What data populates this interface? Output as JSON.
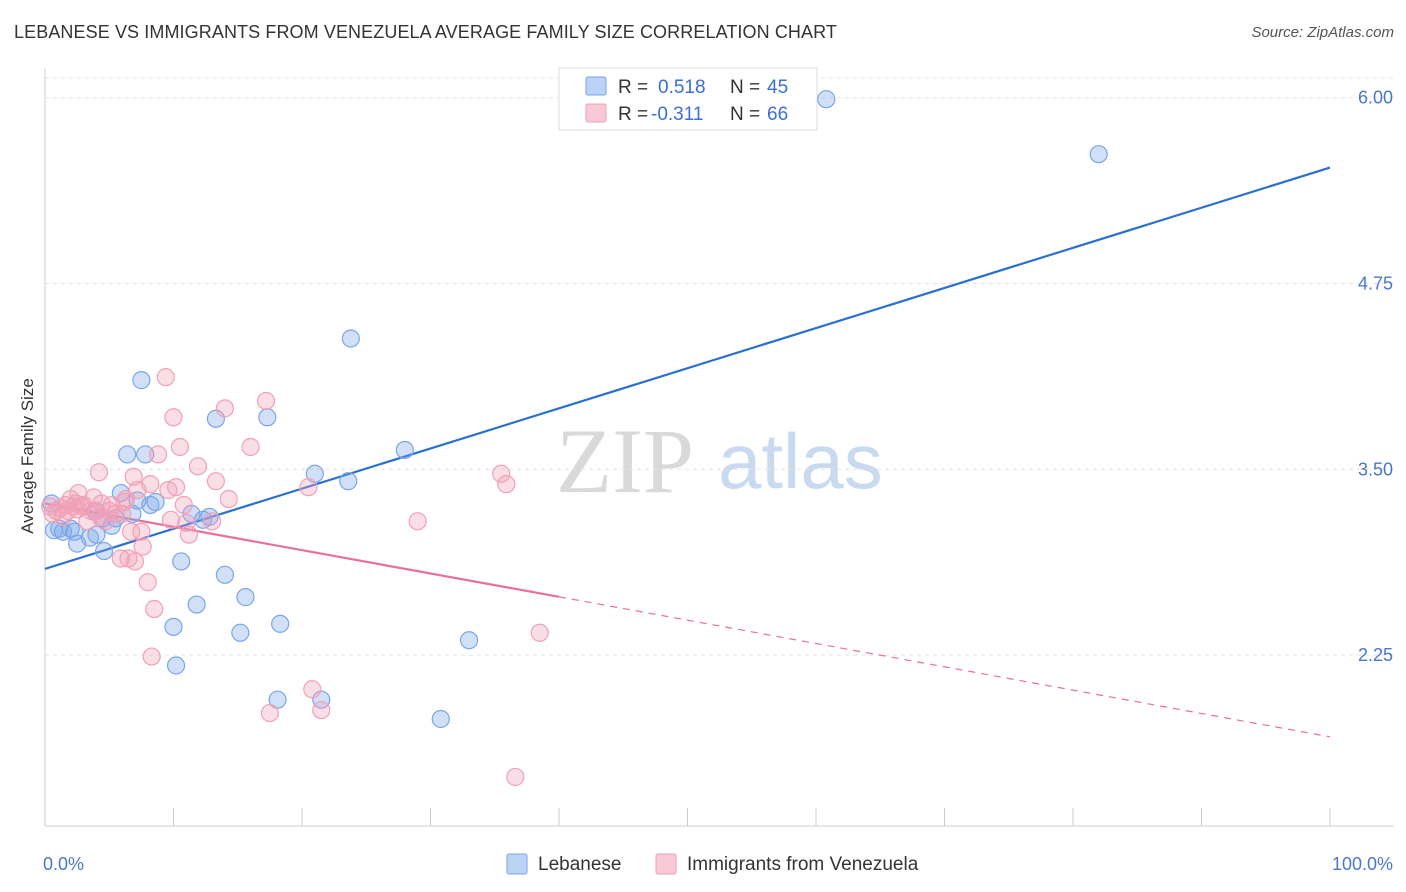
{
  "title": "LEBANESE VS IMMIGRANTS FROM VENEZUELA AVERAGE FAMILY SIZE CORRELATION CHART",
  "source": "Source: ZipAtlas.com",
  "watermark": {
    "zip": "ZIP",
    "atlas": "atlas"
  },
  "chart_data": {
    "type": "scatter",
    "title": "LEBANESE VS IMMIGRANTS FROM VENEZUELA AVERAGE FAMILY SIZE CORRELATION CHART",
    "xlabel": "",
    "ylabel": "Average Family Size",
    "xlim": [
      0,
      100
    ],
    "ylim": [
      1.1,
      6.2
    ],
    "x_tick_labels": [
      "0.0%",
      "100.0%"
    ],
    "y_ticks": [
      2.25,
      3.5,
      4.75,
      6.0
    ],
    "y_tick_labels": [
      "2.25",
      "3.50",
      "4.75",
      "6.00"
    ],
    "grid": true,
    "legend": {
      "placement": "top-center",
      "r_label": "R =",
      "n_label": "N =",
      "entries": [
        {
          "r": "0.518",
          "n": "45"
        },
        {
          "r": "-0.311",
          "n": "66"
        }
      ]
    },
    "series": [
      {
        "name": "Lebanese",
        "color": "#7aa6e8",
        "line_color": "#2b6fd1",
        "trend": {
          "x0": 0,
          "y0": 2.83,
          "x1": 100,
          "y1": 5.53,
          "dashed_from": null
        },
        "points": [
          [
            0.5,
            3.27
          ],
          [
            0.7,
            3.09
          ],
          [
            1.1,
            3.1
          ],
          [
            1.4,
            3.08
          ],
          [
            2.0,
            3.1
          ],
          [
            2.3,
            3.08
          ],
          [
            2.5,
            3.0
          ],
          [
            3.5,
            3.04
          ],
          [
            3.9,
            3.22
          ],
          [
            4.0,
            3.06
          ],
          [
            4.5,
            3.17
          ],
          [
            4.6,
            2.95
          ],
          [
            5.2,
            3.12
          ],
          [
            5.5,
            3.17
          ],
          [
            5.9,
            3.34
          ],
          [
            6.4,
            3.6
          ],
          [
            6.8,
            3.2
          ],
          [
            7.2,
            3.29
          ],
          [
            7.5,
            4.1
          ],
          [
            7.8,
            3.6
          ],
          [
            8.2,
            3.26
          ],
          [
            8.6,
            3.28
          ],
          [
            10.0,
            2.44
          ],
          [
            10.2,
            2.18
          ],
          [
            10.6,
            2.88
          ],
          [
            11.4,
            3.2
          ],
          [
            11.8,
            2.59
          ],
          [
            12.3,
            3.16
          ],
          [
            12.8,
            3.18
          ],
          [
            13.3,
            3.84
          ],
          [
            14.0,
            2.79
          ],
          [
            15.2,
            2.4
          ],
          [
            15.6,
            2.64
          ],
          [
            17.3,
            3.85
          ],
          [
            18.1,
            1.95
          ],
          [
            18.3,
            2.46
          ],
          [
            21.0,
            3.47
          ],
          [
            21.5,
            1.95
          ],
          [
            23.6,
            3.42
          ],
          [
            23.8,
            4.38
          ],
          [
            28.0,
            3.63
          ],
          [
            30.8,
            1.82
          ],
          [
            33.0,
            2.35
          ],
          [
            60.8,
            5.99
          ],
          [
            82.0,
            5.62
          ]
        ]
      },
      {
        "name": "Immigrants from Venezuela",
        "color": "#f0a0b8",
        "line_color": "#e8709a",
        "trend": {
          "x0": 0,
          "y0": 3.27,
          "x1": 100,
          "y1": 1.7,
          "dashed_from": 40
        },
        "points": [
          [
            0.4,
            3.25
          ],
          [
            0.6,
            3.2
          ],
          [
            0.9,
            3.22
          ],
          [
            1.2,
            3.24
          ],
          [
            1.4,
            3.18
          ],
          [
            1.6,
            3.26
          ],
          [
            1.8,
            3.22
          ],
          [
            2.0,
            3.3
          ],
          [
            2.2,
            3.25
          ],
          [
            2.4,
            3.27
          ],
          [
            2.5,
            3.23
          ],
          [
            2.6,
            3.34
          ],
          [
            2.9,
            3.25
          ],
          [
            3.0,
            3.26
          ],
          [
            3.3,
            3.15
          ],
          [
            3.6,
            3.22
          ],
          [
            3.8,
            3.31
          ],
          [
            4.0,
            3.22
          ],
          [
            4.2,
            3.48
          ],
          [
            4.3,
            3.18
          ],
          [
            4.4,
            3.27
          ],
          [
            4.7,
            3.15
          ],
          [
            5.0,
            3.22
          ],
          [
            5.2,
            3.26
          ],
          [
            5.5,
            3.2
          ],
          [
            5.9,
            2.9
          ],
          [
            6.0,
            3.2
          ],
          [
            6.2,
            3.28
          ],
          [
            6.3,
            3.3
          ],
          [
            6.5,
            2.9
          ],
          [
            6.7,
            3.08
          ],
          [
            6.9,
            3.45
          ],
          [
            7.0,
            2.88
          ],
          [
            7.2,
            3.36
          ],
          [
            7.5,
            3.08
          ],
          [
            7.6,
            2.98
          ],
          [
            8.0,
            2.74
          ],
          [
            8.2,
            3.4
          ],
          [
            8.3,
            2.24
          ],
          [
            8.5,
            2.56
          ],
          [
            8.8,
            3.6
          ],
          [
            9.4,
            4.12
          ],
          [
            9.6,
            3.36
          ],
          [
            9.8,
            3.16
          ],
          [
            10.0,
            3.85
          ],
          [
            10.2,
            3.38
          ],
          [
            10.5,
            3.65
          ],
          [
            10.8,
            3.26
          ],
          [
            11.0,
            3.14
          ],
          [
            11.2,
            3.06
          ],
          [
            11.9,
            3.52
          ],
          [
            13.0,
            3.15
          ],
          [
            13.3,
            3.42
          ],
          [
            14.0,
            3.91
          ],
          [
            14.3,
            3.3
          ],
          [
            16.0,
            3.65
          ],
          [
            17.2,
            3.96
          ],
          [
            17.5,
            1.86
          ],
          [
            20.5,
            3.38
          ],
          [
            20.8,
            2.02
          ],
          [
            21.5,
            1.88
          ],
          [
            29.0,
            3.15
          ],
          [
            35.5,
            3.47
          ],
          [
            35.9,
            3.4
          ],
          [
            36.6,
            1.43
          ],
          [
            38.5,
            2.4
          ]
        ]
      }
    ]
  },
  "bottom_legend": [
    "Lebanese",
    "Immigrants from Venezuela"
  ]
}
